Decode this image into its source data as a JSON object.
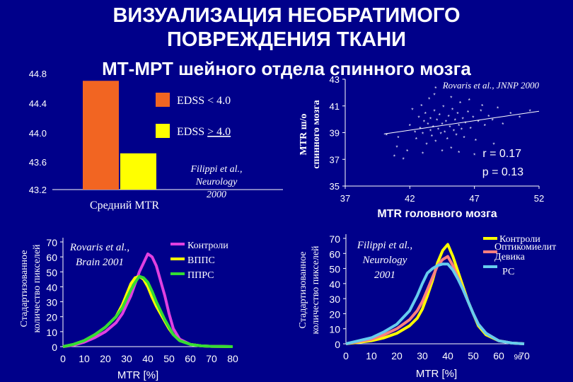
{
  "title": {
    "line1": "ВИЗУАЛИЗАЦИЯ НЕОБРАТИМОГО",
    "line2": "ПОВРЕЖДЕНИЯ ТКАНИ",
    "line3": "МТ-МРТ шейного отдела спинного мозга"
  },
  "slide_number": "96",
  "colors": {
    "background": "#00008a",
    "orange": "#f26522",
    "yellow": "#ffff00",
    "magenta": "#e040e0",
    "green": "#33dd33",
    "cyan": "#66ccee",
    "salmon": "#ff7f7f"
  },
  "chart_data": [
    {
      "type": "bar",
      "categories": [
        "Средний MTR"
      ],
      "xlabel": "Средний MTR",
      "series": [
        {
          "name": "EDSS  < 4.0",
          "values": [
            44.7
          ]
        },
        {
          "name": "EDSS  > 4.0",
          "values": [
            43.7
          ]
        }
      ],
      "yticks": [
        "43.2",
        "43.6",
        "44.0",
        "44.4",
        "44.8"
      ],
      "ylim": [
        43.2,
        44.8
      ],
      "legend": [
        "EDSS  < 4.0",
        "EDSS  ",
        "> 4.0"
      ],
      "annotation": [
        "Filippi et al.,",
        "Neurology",
        "2000"
      ]
    },
    {
      "type": "scatter",
      "title": "Rovaris et al., JNNP 2000",
      "xlabel": "MTR головного мозга",
      "ylabel": [
        "MTR ш/о",
        "спинного мозга"
      ],
      "xlim": [
        37,
        52
      ],
      "ylim": [
        35,
        43
      ],
      "xticks": [
        "37",
        "42",
        "47",
        "52"
      ],
      "yticks": [
        "35",
        "37",
        "39",
        "41",
        "43"
      ],
      "stats": [
        "r = 0.17",
        "p = 0.13"
      ],
      "points": [
        [
          40.2,
          38.8
        ],
        [
          40.8,
          37.2
        ],
        [
          41.1,
          38.6
        ],
        [
          41.5,
          37.0
        ],
        [
          41.8,
          37.6
        ],
        [
          42.0,
          39.5
        ],
        [
          42.2,
          40.7
        ],
        [
          42.4,
          39.0
        ],
        [
          42.5,
          38.5
        ],
        [
          42.7,
          40.1
        ],
        [
          42.8,
          39.3
        ],
        [
          42.9,
          41.0
        ],
        [
          43.0,
          38.9
        ],
        [
          43.1,
          39.8
        ],
        [
          43.2,
          40.4
        ],
        [
          43.3,
          38.1
        ],
        [
          43.4,
          39.6
        ],
        [
          43.5,
          41.5
        ],
        [
          43.6,
          39.1
        ],
        [
          43.6,
          40.0
        ],
        [
          43.7,
          38.7
        ],
        [
          43.8,
          39.4
        ],
        [
          43.9,
          40.6
        ],
        [
          44.0,
          38.3
        ],
        [
          44.1,
          39.9
        ],
        [
          44.2,
          39.2
        ],
        [
          44.3,
          40.3
        ],
        [
          44.4,
          38.9
        ],
        [
          44.5,
          39.6
        ],
        [
          44.6,
          40.9
        ],
        [
          44.7,
          39.0
        ],
        [
          44.8,
          39.8
        ],
        [
          44.9,
          38.5
        ],
        [
          45.0,
          40.2
        ],
        [
          45.1,
          39.4
        ],
        [
          45.2,
          37.8
        ],
        [
          45.3,
          40.7
        ],
        [
          45.4,
          39.1
        ],
        [
          45.5,
          39.9
        ],
        [
          45.6,
          38.8
        ],
        [
          45.7,
          40.4
        ],
        [
          45.8,
          39.5
        ],
        [
          45.9,
          41.2
        ],
        [
          46.0,
          39.2
        ],
        [
          46.1,
          40.0
        ],
        [
          46.2,
          38.6
        ],
        [
          46.3,
          39.7
        ],
        [
          46.5,
          40.5
        ],
        [
          46.7,
          39.3
        ],
        [
          46.9,
          40.1
        ],
        [
          47.1,
          38.4
        ],
        [
          47.3,
          39.8
        ],
        [
          47.5,
          40.6
        ],
        [
          47.8,
          39.5
        ],
        [
          48.1,
          40.2
        ],
        [
          48.4,
          39.9
        ],
        [
          48.8,
          40.8
        ],
        [
          49.2,
          39.6
        ],
        [
          49.8,
          40.4
        ],
        [
          50.5,
          40.1
        ],
        [
          51.3,
          40.6
        ],
        [
          43.0,
          37.4
        ],
        [
          44.5,
          37.6
        ],
        [
          45.8,
          37.5
        ],
        [
          47.0,
          37.3
        ],
        [
          48.5,
          38.1
        ],
        [
          41.0,
          37.9
        ],
        [
          43.9,
          41.8
        ],
        [
          45.2,
          41.6
        ],
        [
          46.6,
          41.4
        ],
        [
          44.0,
          42.3
        ],
        [
          47.6,
          41.0
        ]
      ],
      "trend": [
        [
          40.0,
          38.9
        ],
        [
          52.0,
          40.6
        ]
      ]
    },
    {
      "type": "line",
      "annotation": [
        "Rovaris et al.,",
        "Brain 2001"
      ],
      "xlabel": "MTR [%]",
      "ylabel": [
        "Стадартизованное",
        "количество пикселей"
      ],
      "xlim": [
        0,
        80
      ],
      "ylim": [
        0,
        70
      ],
      "xticks": [
        "0",
        "10",
        "20",
        "30",
        "40",
        "50",
        "60",
        "70",
        "80"
      ],
      "yticks": [
        "0",
        "10",
        "20",
        "30",
        "40",
        "50",
        "60",
        "70"
      ],
      "x": [
        0,
        5,
        10,
        15,
        20,
        25,
        28,
        30,
        32,
        34,
        36,
        38,
        40,
        42,
        44,
        46,
        48,
        50,
        52,
        55,
        60,
        65,
        70,
        75,
        80
      ],
      "series": [
        {
          "name": "Контроли",
          "values": [
            0,
            1,
            3,
            6,
            10,
            16,
            22,
            28,
            34,
            42,
            50,
            56,
            62,
            60,
            54,
            44,
            34,
            22,
            12,
            5,
            1.5,
            0.5,
            0.2,
            0.1,
            0
          ]
        },
        {
          "name": "ВППС",
          "values": [
            0,
            1.5,
            4,
            8,
            13,
            20,
            28,
            35,
            42,
            46,
            47,
            45,
            40,
            33,
            27,
            22,
            17,
            12,
            8,
            4,
            1.5,
            0.5,
            0.2,
            0.1,
            0
          ]
        },
        {
          "name": "ППРС",
          "values": [
            0,
            1.5,
            4,
            8,
            13,
            20,
            26,
            32,
            38,
            43,
            47,
            46,
            43,
            37,
            30,
            24,
            18,
            13,
            8,
            4,
            1.5,
            0.5,
            0.2,
            0.1,
            0
          ]
        }
      ]
    },
    {
      "type": "line",
      "annotation": [
        "Filippi et al.,",
        "Neurology",
        "2001"
      ],
      "xlabel": "MTR [%]",
      "ylabel": [
        "Стадартизованное",
        "количество пикселей"
      ],
      "xlim": [
        0,
        70
      ],
      "ylim": [
        0,
        70
      ],
      "xticks": [
        "0",
        "10",
        "20",
        "30",
        "40",
        "50",
        "60",
        "70"
      ],
      "yticks": [
        "0",
        "10",
        "20",
        "30",
        "40",
        "50",
        "60",
        "70"
      ],
      "x": [
        0,
        5,
        10,
        15,
        20,
        25,
        28,
        30,
        32,
        34,
        36,
        38,
        40,
        42,
        44,
        46,
        48,
        50,
        52,
        55,
        60,
        65,
        70
      ],
      "series": [
        {
          "name": "Контроли",
          "values": [
            0,
            1,
            2,
            4,
            7,
            12,
            17,
            23,
            32,
            42,
            54,
            62,
            66,
            58,
            48,
            38,
            28,
            20,
            12,
            6,
            2,
            0.5,
            0
          ]
        },
        {
          "name": "Оптикомиелит Девика",
          "values": [
            0,
            1.5,
            3,
            6,
            10,
            16,
            22,
            28,
            36,
            44,
            52,
            56,
            58,
            52,
            44,
            36,
            28,
            20,
            13,
            7,
            2,
            0.5,
            0
          ]
        },
        {
          "name": "РС",
          "values": [
            0,
            2,
            4,
            8,
            13,
            22,
            32,
            40,
            47,
            50,
            52,
            53,
            53,
            49,
            43,
            36,
            28,
            20,
            13,
            7,
            2,
            0.5,
            0
          ]
        }
      ]
    }
  ]
}
